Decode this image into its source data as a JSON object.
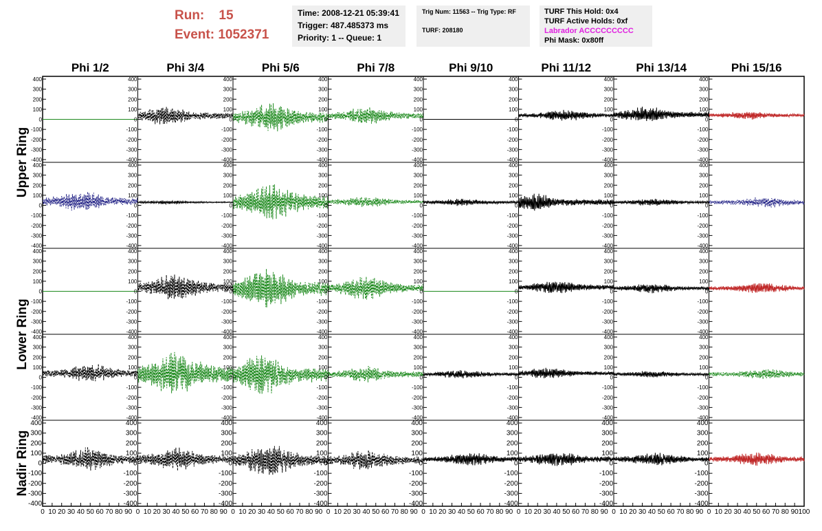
{
  "header": {
    "run_label": "Run:",
    "run_value": "15",
    "event_label": "Event:",
    "event_value": "1052371",
    "time": "Time: 2008-12-21 05:39:41",
    "trigger": "Trigger: 487.485373 ms",
    "priority": "Priority: 1 -- Queue: 1",
    "trig_num": "Trig Num: 11563 -- Trig Type: RF",
    "turf": "TURF: 208180",
    "turf_hold": "TURF This Hold: 0x4",
    "turf_active": "TURF Active Holds: 0xf",
    "labrador": "Labrador ACCCCCCCCC",
    "phi_mask": "Phi Mask: 0x80ff"
  },
  "colors": {
    "header_red": "#c8524a",
    "labrador_magenta": "#e020e0",
    "black": "#000000",
    "green": "#1e8a1e",
    "blue": "#2a2a8a",
    "red": "#c02828"
  },
  "chart_data": {
    "type": "line",
    "columns": [
      "Phi 1/2",
      "Phi 3/4",
      "Phi 5/6",
      "Phi 7/8",
      "Phi 9/10",
      "Phi 11/12",
      "Phi 13/14",
      "Phi 15/16"
    ],
    "ring_labels": [
      {
        "label": "Upper Ring",
        "rows": [
          0,
          1
        ]
      },
      {
        "label": "Lower Ring",
        "rows": [
          2,
          3
        ]
      },
      {
        "label": "Nadir Ring",
        "rows": [
          4
        ]
      }
    ],
    "xlim": [
      0,
      100
    ],
    "x_ticks": [
      0,
      10,
      20,
      30,
      40,
      50,
      60,
      70,
      80,
      90,
      100
    ],
    "x_tick_labels": [
      "0",
      "10",
      "20",
      "30",
      "40",
      "50",
      "60",
      "70",
      "80",
      "90",
      "100"
    ],
    "ylim": [
      -400,
      400
    ],
    "y_ticks": [
      -400,
      -300,
      -200,
      -100,
      0,
      100,
      200,
      300,
      400
    ],
    "y_tick_labels": [
      "-400",
      "-300",
      "-200",
      "-100",
      "0",
      "100",
      "200",
      "300",
      "400"
    ],
    "panels": [
      [
        {
          "color": "green",
          "style": "flat",
          "offset": 0
        },
        {
          "color": "black",
          "style": "dashed",
          "offset": 35,
          "amp": 80,
          "peak": 30
        },
        {
          "color": "green",
          "style": "dashed",
          "offset": 20,
          "amp": 120,
          "peak": 40
        },
        {
          "color": "green",
          "style": "dashed",
          "offset": 35,
          "amp": 70,
          "peak": 40
        },
        {
          "color": "black",
          "style": "flat",
          "offset": 0
        },
        {
          "color": "black",
          "style": "solid",
          "offset": 40,
          "amp": 45,
          "peak": 50
        },
        {
          "color": "black",
          "style": "solid",
          "offset": 45,
          "amp": 65,
          "peak": 35
        },
        {
          "color": "red",
          "style": "solid",
          "offset": 40,
          "amp": 35,
          "peak": 40
        }
      ],
      [
        {
          "color": "blue",
          "style": "dashed",
          "offset": 40,
          "amp": 85,
          "peak": 40
        },
        {
          "color": "black",
          "style": "solid",
          "offset": 30,
          "amp": 15,
          "peak": 30
        },
        {
          "color": "green",
          "style": "dashed",
          "offset": 30,
          "amp": 160,
          "peak": 40
        },
        {
          "color": "green",
          "style": "dashed",
          "offset": 35,
          "amp": 45,
          "peak": 40
        },
        {
          "color": "black",
          "style": "solid",
          "offset": 30,
          "amp": 30,
          "peak": 40
        },
        {
          "color": "black",
          "style": "solid",
          "offset": 30,
          "amp": 70,
          "peak": 15
        },
        {
          "color": "black",
          "style": "solid",
          "offset": 30,
          "amp": 30,
          "peak": 40
        },
        {
          "color": "blue",
          "style": "dashed",
          "offset": 30,
          "amp": 45,
          "peak": 60
        }
      ],
      [
        {
          "color": "green",
          "style": "flat",
          "offset": 0
        },
        {
          "color": "black",
          "style": "dashed",
          "offset": 40,
          "amp": 110,
          "peak": 40
        },
        {
          "color": "green",
          "style": "dashed",
          "offset": 25,
          "amp": 170,
          "peak": 35
        },
        {
          "color": "green",
          "style": "dashed",
          "offset": 30,
          "amp": 95,
          "peak": 40
        },
        {
          "color": "green",
          "style": "flat",
          "offset": 0
        },
        {
          "color": "black",
          "style": "solid",
          "offset": 40,
          "amp": 55,
          "peak": 40
        },
        {
          "color": "black",
          "style": "solid",
          "offset": 30,
          "amp": 40,
          "peak": 40
        },
        {
          "color": "red",
          "style": "solid",
          "offset": 30,
          "amp": 45,
          "peak": 55
        }
      ],
      [
        {
          "color": "black",
          "style": "dashed",
          "offset": 40,
          "amp": 80,
          "peak": 50
        },
        {
          "color": "green",
          "style": "dashed",
          "offset": 30,
          "amp": 190,
          "peak": 40
        },
        {
          "color": "green",
          "style": "dashed",
          "offset": 25,
          "amp": 170,
          "peak": 30
        },
        {
          "color": "green",
          "style": "dashed",
          "offset": 30,
          "amp": 65,
          "peak": 40
        },
        {
          "color": "black",
          "style": "solid",
          "offset": 30,
          "amp": 35,
          "peak": 40
        },
        {
          "color": "black",
          "style": "solid",
          "offset": 40,
          "amp": 45,
          "peak": 30
        },
        {
          "color": "black",
          "style": "solid",
          "offset": 30,
          "amp": 30,
          "peak": 40
        },
        {
          "color": "green",
          "style": "dashed",
          "offset": 30,
          "amp": 45,
          "peak": 60
        }
      ],
      [
        {
          "color": "black",
          "style": "dashed",
          "offset": 40,
          "amp": 100,
          "peak": 50
        },
        {
          "color": "black",
          "style": "dashed",
          "offset": 40,
          "amp": 95,
          "peak": 40
        },
        {
          "color": "black",
          "style": "dashed",
          "offset": 30,
          "amp": 130,
          "peak": 38
        },
        {
          "color": "black",
          "style": "dashed",
          "offset": 30,
          "amp": 85,
          "peak": 40
        },
        {
          "color": "black",
          "style": "solid",
          "offset": 40,
          "amp": 55,
          "peak": 50
        },
        {
          "color": "black",
          "style": "solid",
          "offset": 40,
          "amp": 65,
          "peak": 40
        },
        {
          "color": "black",
          "style": "solid",
          "offset": 40,
          "amp": 55,
          "peak": 45
        },
        {
          "color": "red",
          "style": "solid",
          "offset": 40,
          "amp": 55,
          "peak": 50
        }
      ]
    ]
  }
}
